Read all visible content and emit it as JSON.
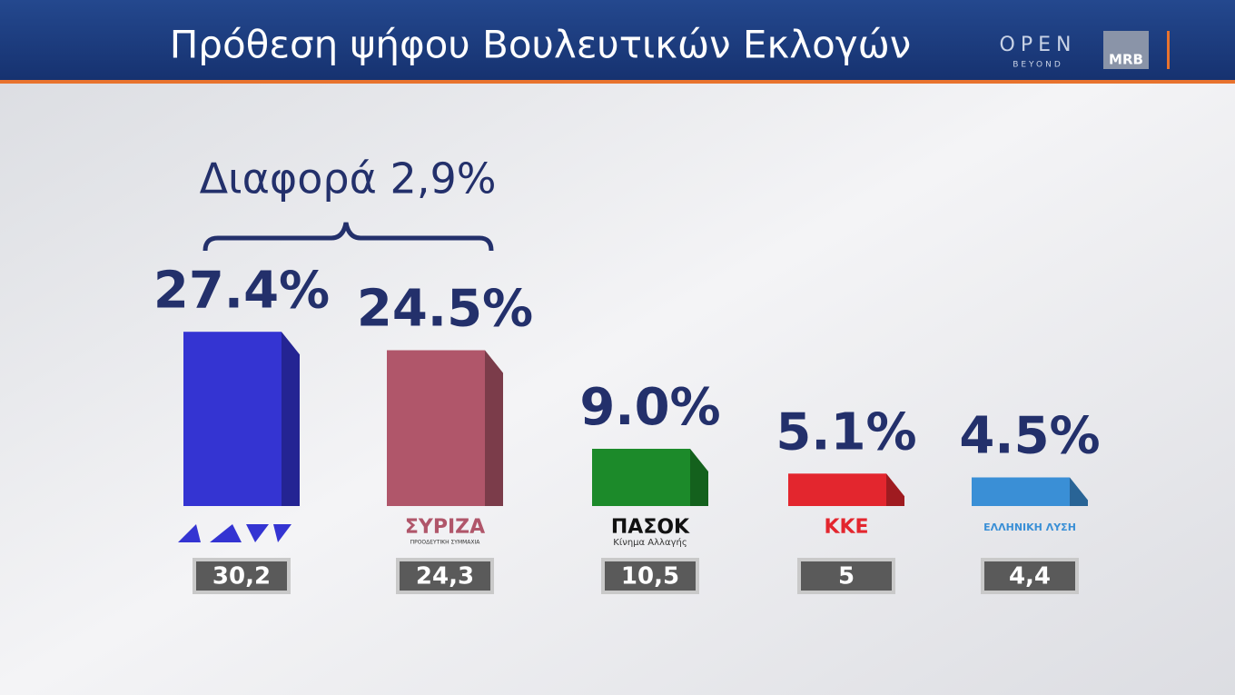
{
  "header": {
    "title": "Πρόθεση ψήφου Βουλευτικών Εκλογών",
    "brand": "OPEN",
    "brand_sub": "BEYOND",
    "pollster": "MRB"
  },
  "chart_data": {
    "type": "bar",
    "annotation": "Διαφορά 2,9%",
    "categories": [
      null,
      "ΣΥΡΙΖΑ",
      "ΠΑΣΟΚ",
      "ΚΚΕ",
      "ΕΛΛΗΝΙΚΗ ΛΥΣΗ"
    ],
    "category_subtitles": [
      null,
      "ΠΡΟΟΔΕΥΤΙΚΗ ΣΥΜΜΑΧΙΑ",
      "Κίνημα Αλλαγής",
      null,
      null
    ],
    "values": [
      27.4,
      24.5,
      9.0,
      5.1,
      4.5
    ],
    "value_labels": [
      "27.4%",
      "24.5%",
      "9.0%",
      "5.1%",
      "4.5%"
    ],
    "colors": [
      "#3434d2",
      "#b0566a",
      "#1c8a2a",
      "#e3262e",
      "#3a8fd6"
    ],
    "previous": {
      "values": [
        30.2,
        24.3,
        10.5,
        5,
        4.4
      ],
      "value_labels": [
        "30,2",
        "24,3",
        "10,5",
        "5",
        "4,4"
      ]
    }
  }
}
